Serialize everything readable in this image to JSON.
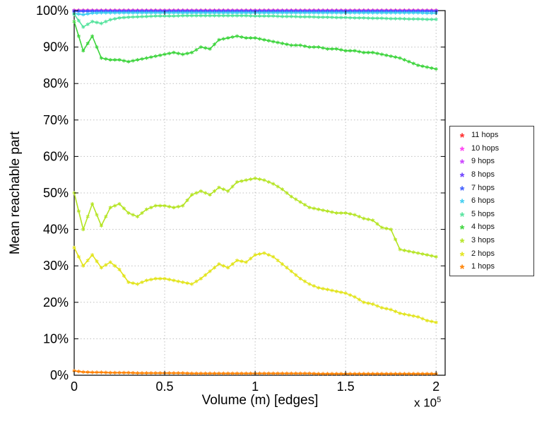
{
  "chart_data": {
    "type": "line",
    "title": "",
    "xlabel": "Volume (m) [edges]",
    "ylabel": "Mean reachable part",
    "x_scale_base": "x 10",
    "x_scale_exp": "5",
    "x_units": "edges, in units of 1e5",
    "xlim": [
      0,
      2.05
    ],
    "ylim": [
      0,
      100
    ],
    "x_ticks": [
      0,
      0.5,
      1,
      1.5,
      2
    ],
    "x_tick_labels": [
      "0",
      "0.5",
      "1",
      "1.5",
      "2"
    ],
    "y_ticks": [
      0,
      10,
      20,
      30,
      40,
      50,
      60,
      70,
      80,
      90,
      100
    ],
    "y_tick_labels": [
      "0%",
      "10%",
      "20%",
      "30%",
      "40%",
      "50%",
      "60%",
      "70%",
      "80%",
      "90%",
      "100%"
    ],
    "grid": "dotted",
    "legend_position": "right",
    "marker": "*",
    "x": [
      0,
      0.05,
      0.1,
      0.15,
      0.2,
      0.25,
      0.3,
      0.35,
      0.4,
      0.45,
      0.5,
      0.55,
      0.6,
      0.65,
      0.7,
      0.75,
      0.8,
      0.85,
      0.9,
      0.95,
      1,
      1.05,
      1.1,
      1.15,
      1.2,
      1.25,
      1.3,
      1.35,
      1.4,
      1.45,
      1.5,
      1.55,
      1.6,
      1.65,
      1.7,
      1.75,
      1.8,
      1.85,
      1.9,
      1.95,
      2
    ],
    "series": [
      {
        "name": "11 hops",
        "color": "#ff2b2b",
        "values": [
          100.1,
          100.1,
          100.1,
          100.1,
          100.1,
          100.1,
          100.1,
          100.1,
          100.1,
          100.1,
          100.1,
          100.1,
          100.1,
          100.1,
          100.1,
          100.1,
          100.1,
          100.1,
          100.1,
          100.1,
          100.1,
          100.1,
          100.1,
          100.1,
          100.1,
          100.1,
          100.1,
          100.1,
          100.1,
          100.1,
          100.1,
          100.1,
          100.1,
          100.1,
          100.1,
          100.1,
          100.1,
          100.1,
          100.1,
          100.1,
          100.1
        ]
      },
      {
        "name": "10 hops",
        "color": "#ff3df2",
        "values": [
          100.05,
          100.05,
          100.05,
          100.05,
          100.05,
          100.05,
          100.05,
          100.05,
          100.05,
          100.05,
          100.05,
          100.05,
          100.05,
          100.05,
          100.05,
          100.05,
          100.05,
          100.05,
          100.05,
          100.05,
          100.05,
          100.05,
          100.05,
          100.05,
          100.05,
          100.05,
          100.05,
          100.05,
          100.05,
          100.05,
          100.05,
          100.05,
          100.05,
          100.05,
          100.05,
          100.05,
          100.05,
          100.05,
          100.05,
          100.05,
          100.05
        ]
      },
      {
        "name": "9 hops",
        "color": "#c93dff",
        "values": [
          99.95,
          99.95,
          99.95,
          99.95,
          99.95,
          99.95,
          99.95,
          99.95,
          99.95,
          99.95,
          99.95,
          99.95,
          99.95,
          99.95,
          99.95,
          99.95,
          99.95,
          99.95,
          99.95,
          99.95,
          99.95,
          99.95,
          99.95,
          99.95,
          99.95,
          99.95,
          99.95,
          99.95,
          99.95,
          99.95,
          99.95,
          99.95,
          99.95,
          99.95,
          99.95,
          99.95,
          99.95,
          99.95,
          99.95,
          99.95,
          99.95
        ]
      },
      {
        "name": "8 hops",
        "color": "#6a3dff",
        "values": [
          99.9,
          99.9,
          99.9,
          99.9,
          99.9,
          99.9,
          99.9,
          99.9,
          99.9,
          99.9,
          99.9,
          99.9,
          99.9,
          99.9,
          99.9,
          99.9,
          99.9,
          99.9,
          99.9,
          99.9,
          99.9,
          99.9,
          99.9,
          99.9,
          99.9,
          99.9,
          99.9,
          99.9,
          99.9,
          99.9,
          99.9,
          99.9,
          99.9,
          99.9,
          99.9,
          99.9,
          99.9,
          99.9,
          99.9,
          99.9,
          99.9
        ]
      },
      {
        "name": "7 hops",
        "color": "#3d5bff",
        "values": [
          99.8,
          99.8,
          99.8,
          99.8,
          99.8,
          99.8,
          99.8,
          99.8,
          99.8,
          99.8,
          99.8,
          99.8,
          99.8,
          99.8,
          99.8,
          99.8,
          99.8,
          99.8,
          99.8,
          99.8,
          99.8,
          99.8,
          99.8,
          99.8,
          99.8,
          99.8,
          99.8,
          99.8,
          99.8,
          99.8,
          99.8,
          99.8,
          99.8,
          99.8,
          99.8,
          99.8,
          99.8,
          99.8,
          99.8,
          99.8,
          99.8
        ]
      },
      {
        "name": "6 hops",
        "color": "#3dcdf0",
        "values": [
          99.2,
          98.9,
          99.3,
          99.4,
          99.4,
          99.4,
          99.4,
          99.4,
          99.4,
          99.4,
          99.4,
          99.4,
          99.4,
          99.4,
          99.4,
          99.4,
          99.4,
          99.4,
          99.4,
          99.4,
          99.4,
          99.4,
          99.4,
          99.4,
          99.4,
          99.4,
          99.4,
          99.4,
          99.4,
          99.4,
          99.4,
          99.4,
          99.4,
          99.4,
          99.4,
          99.4,
          99.4,
          99.4,
          99.4,
          99.3,
          99.3
        ]
      },
      {
        "name": "5 hops",
        "color": "#52e39c",
        "values": [
          99,
          95.5,
          97,
          96.5,
          97.5,
          98,
          98.2,
          98.3,
          98.4,
          98.5,
          98.5,
          98.5,
          98.6,
          98.6,
          98.6,
          98.6,
          98.6,
          98.6,
          98.6,
          98.6,
          98.5,
          98.5,
          98.5,
          98.4,
          98.4,
          98.3,
          98.3,
          98.2,
          98.2,
          98.1,
          98.1,
          98,
          98,
          97.9,
          97.9,
          97.8,
          97.8,
          97.7,
          97.7,
          97.6,
          97.6
        ]
      },
      {
        "name": "4 hops",
        "color": "#3cd43c",
        "values": [
          97,
          89,
          93,
          87,
          86.5,
          86.5,
          86,
          86.5,
          87,
          87.5,
          88,
          88.5,
          88,
          88.5,
          90,
          89.5,
          92,
          92.5,
          93,
          92.5,
          92.5,
          92,
          91.5,
          91,
          90.5,
          90.5,
          90,
          90,
          89.5,
          89.5,
          89,
          89,
          88.5,
          88.5,
          88,
          87.5,
          87,
          86,
          85,
          84.5,
          84
        ]
      },
      {
        "name": "3 hops",
        "color": "#b4e422",
        "values": [
          50,
          40,
          47,
          41,
          46,
          47,
          44.5,
          43.5,
          45.5,
          46.5,
          46.5,
          46,
          46.5,
          49.5,
          50.5,
          49.5,
          51.5,
          50.5,
          53,
          53.5,
          54,
          53.5,
          52.5,
          51,
          49,
          47.5,
          46,
          45.5,
          45,
          44.5,
          44.5,
          44,
          43,
          42.5,
          40.5,
          40,
          34.5,
          34,
          33.5,
          33,
          32.5
        ]
      },
      {
        "name": "2 hops",
        "color": "#e2e41a",
        "values": [
          35,
          30,
          33,
          29.5,
          31,
          29,
          25.5,
          25,
          26,
          26.5,
          26.5,
          26,
          25.5,
          25,
          26.5,
          28.5,
          30.5,
          29.5,
          31.5,
          31,
          33,
          33.5,
          32.5,
          30.5,
          28.5,
          26.5,
          25,
          24,
          23.5,
          23,
          22.5,
          21.5,
          20,
          19.5,
          18.5,
          18,
          17,
          16.5,
          16,
          15,
          14.5
        ]
      },
      {
        "name": "1 hops",
        "color": "#ff8000",
        "values": [
          1.2,
          0.9,
          0.8,
          0.8,
          0.7,
          0.7,
          0.7,
          0.6,
          0.6,
          0.6,
          0.6,
          0.6,
          0.6,
          0.5,
          0.5,
          0.5,
          0.5,
          0.5,
          0.5,
          0.5,
          0.5,
          0.5,
          0.5,
          0.5,
          0.5,
          0.5,
          0.5,
          0.4,
          0.4,
          0.4,
          0.4,
          0.4,
          0.4,
          0.4,
          0.4,
          0.4,
          0.4,
          0.4,
          0.4,
          0.4,
          0.4
        ]
      }
    ]
  }
}
